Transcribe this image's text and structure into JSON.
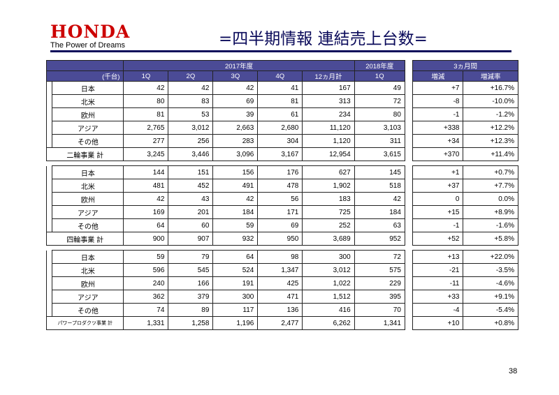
{
  "brand": {
    "logo": "HONDA",
    "tagline": "The Power of Dreams"
  },
  "title": "=四半期情報 連結売上台数=",
  "page_number": "38",
  "header": {
    "unit": "(千台)",
    "fy2017": "2017年度",
    "fy2018": "2018年度",
    "three_month": "3ヵ月間",
    "cols": [
      "1Q",
      "2Q",
      "3Q",
      "4Q",
      "12ヵ月計",
      "1Q",
      "増減",
      "増減率"
    ]
  },
  "sections": [
    {
      "rows": [
        {
          "label": "日本",
          "v": [
            "42",
            "42",
            "42",
            "41",
            "167",
            "49",
            "+7",
            "+16.7%"
          ]
        },
        {
          "label": "北米",
          "v": [
            "80",
            "83",
            "69",
            "81",
            "313",
            "72",
            "-8",
            "-10.0%"
          ]
        },
        {
          "label": "欧州",
          "v": [
            "81",
            "53",
            "39",
            "61",
            "234",
            "80",
            "-1",
            "-1.2%"
          ]
        },
        {
          "label": "アジア",
          "v": [
            "2,765",
            "3,012",
            "2,663",
            "2,680",
            "11,120",
            "3,103",
            "+338",
            "+12.2%"
          ]
        },
        {
          "label": "その他",
          "v": [
            "277",
            "256",
            "283",
            "304",
            "1,120",
            "311",
            "+34",
            "+12.3%"
          ]
        }
      ],
      "total": {
        "label": "二輪事業 計",
        "v": [
          "3,245",
          "3,446",
          "3,096",
          "3,167",
          "12,954",
          "3,615",
          "+370",
          "+11.4%"
        ]
      }
    },
    {
      "rows": [
        {
          "label": "日本",
          "v": [
            "144",
            "151",
            "156",
            "176",
            "627",
            "145",
            "+1",
            "+0.7%"
          ]
        },
        {
          "label": "北米",
          "v": [
            "481",
            "452",
            "491",
            "478",
            "1,902",
            "518",
            "+37",
            "+7.7%"
          ]
        },
        {
          "label": "欧州",
          "v": [
            "42",
            "43",
            "42",
            "56",
            "183",
            "42",
            "0",
            "0.0%"
          ]
        },
        {
          "label": "アジア",
          "v": [
            "169",
            "201",
            "184",
            "171",
            "725",
            "184",
            "+15",
            "+8.9%"
          ]
        },
        {
          "label": "その他",
          "v": [
            "64",
            "60",
            "59",
            "69",
            "252",
            "63",
            "-1",
            "-1.6%"
          ]
        }
      ],
      "total": {
        "label": "四輪事業 計",
        "v": [
          "900",
          "907",
          "932",
          "950",
          "3,689",
          "952",
          "+52",
          "+5.8%"
        ]
      }
    },
    {
      "rows": [
        {
          "label": "日本",
          "v": [
            "59",
            "79",
            "64",
            "98",
            "300",
            "72",
            "+13",
            "+22.0%"
          ]
        },
        {
          "label": "北米",
          "v": [
            "596",
            "545",
            "524",
            "1,347",
            "3,012",
            "575",
            "-21",
            "-3.5%"
          ]
        },
        {
          "label": "欧州",
          "v": [
            "240",
            "166",
            "191",
            "425",
            "1,022",
            "229",
            "-11",
            "-4.6%"
          ]
        },
        {
          "label": "アジア",
          "v": [
            "362",
            "379",
            "300",
            "471",
            "1,512",
            "395",
            "+33",
            "+9.1%"
          ]
        },
        {
          "label": "その他",
          "v": [
            "74",
            "89",
            "117",
            "136",
            "416",
            "70",
            "-4",
            "-5.4%"
          ]
        }
      ],
      "total": {
        "label": "パワープロダクツ事業 計",
        "v": [
          "1,331",
          "1,258",
          "1,196",
          "2,477",
          "6,262",
          "1,341",
          "+10",
          "+0.8%"
        ]
      }
    }
  ]
}
